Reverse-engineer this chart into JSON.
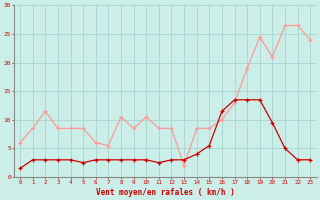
{
  "hours": [
    0,
    1,
    2,
    3,
    4,
    5,
    6,
    7,
    8,
    9,
    10,
    11,
    12,
    13,
    14,
    15,
    16,
    17,
    18,
    19,
    20,
    21,
    22,
    23
  ],
  "wind_avg": [
    1.5,
    3,
    3,
    3,
    3,
    2.5,
    3,
    3,
    3,
    3,
    3,
    2.5,
    3,
    3,
    4,
    5.5,
    11.5,
    13.5,
    13.5,
    13.5,
    9.5,
    5,
    3,
    3
  ],
  "wind_gust": [
    6,
    8.5,
    11.5,
    8.5,
    8.5,
    8.5,
    6,
    5.5,
    10.5,
    8.5,
    10.5,
    8.5,
    8.5,
    2,
    8.5,
    8.5,
    10,
    13,
    19,
    24.5,
    21,
    26.5,
    26.5,
    24
  ],
  "bg_color": "#cceee8",
  "grid_color": "#aad4d0",
  "line_avg_color": "#cc0000",
  "line_gust_color": "#ff9999",
  "xlabel": "Vent moyen/en rafales ( km/h )",
  "ylim": [
    0,
    30
  ],
  "yticks": [
    0,
    5,
    10,
    15,
    20,
    25,
    30
  ],
  "xticks": [
    0,
    1,
    2,
    3,
    4,
    5,
    6,
    7,
    8,
    9,
    10,
    11,
    12,
    13,
    14,
    15,
    16,
    17,
    18,
    19,
    20,
    21,
    22,
    23
  ],
  "tick_color": "#cc0000",
  "label_color": "#cc0000",
  "spine_color": "#888888"
}
